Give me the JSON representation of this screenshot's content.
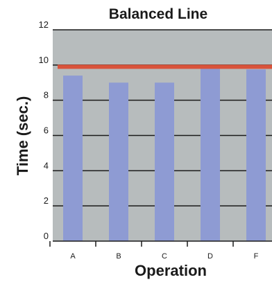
{
  "chart_data": {
    "type": "bar",
    "title": "Balanced Line",
    "xlabel": "Operation",
    "ylabel": "Time (sec.)",
    "categories": [
      "A",
      "B",
      "C",
      "D",
      "F"
    ],
    "values": [
      9.4,
      9.0,
      9.0,
      9.8,
      9.75
    ],
    "ylim": [
      0,
      12
    ],
    "yticks": [
      0,
      2,
      4,
      6,
      8,
      10,
      12
    ],
    "reference_line": {
      "value": 9.9,
      "color": "#d9533b"
    },
    "grid": true,
    "colors": {
      "bar": "#8e9bd3",
      "plot_background": "#b7bcbd",
      "gridline": "#1a1a1a"
    }
  }
}
